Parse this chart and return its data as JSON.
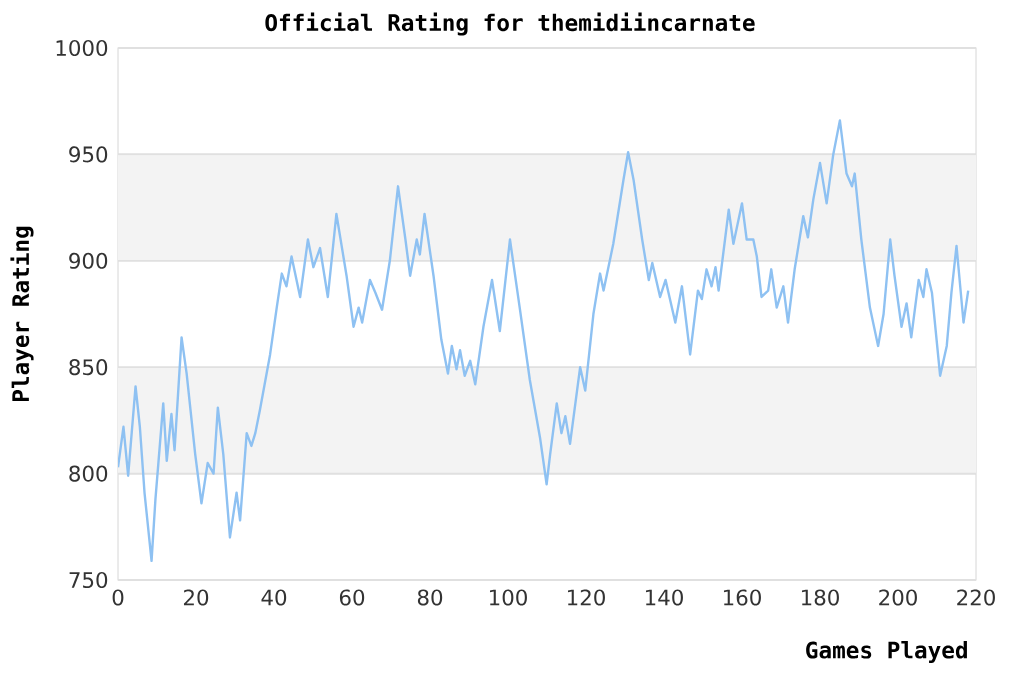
{
  "chart_data": {
    "type": "line",
    "title": "Official Rating for themidiincarnate",
    "xlabel": "Games Played",
    "ylabel": "Player Rating",
    "xlim": [
      0,
      220
    ],
    "xticks": [
      0,
      20,
      40,
      60,
      80,
      100,
      120,
      140,
      160,
      180,
      200,
      220
    ],
    "ylim": [
      750,
      1000
    ],
    "yticks": [
      750,
      800,
      850,
      900,
      950,
      1000
    ],
    "grid": "y",
    "bands": [
      {
        "axis": "y",
        "from": 800,
        "to": 850,
        "color": "#f3f3f3"
      },
      {
        "axis": "y",
        "from": 900,
        "to": 950,
        "color": "#f3f3f3"
      }
    ],
    "series": [
      {
        "color": "#8ec1f2",
        "x": [
          0,
          1.4,
          2.6,
          4.5,
          5.6,
          6.8,
          8.6,
          9.6,
          11.6,
          12.5,
          13.7,
          14.5,
          16.3,
          17.6,
          19.8,
          21.4,
          23,
          24.5,
          25.6,
          27,
          28.7,
          30.4,
          31.3,
          33,
          34.2,
          35.2,
          36.4,
          39,
          40.7,
          42,
          43.2,
          44.5,
          46.7,
          48.7,
          50.1,
          51.8,
          53.8,
          56,
          58.6,
          60.4,
          61.7,
          62.6,
          64.6,
          66,
          67.7,
          69.7,
          71.8,
          73.7,
          74.9,
          76.6,
          77.4,
          78.6,
          80.9,
          82.9,
          84.6,
          85.6,
          86.8,
          87.7,
          88.9,
          90.3,
          91.6,
          93.7,
          95.9,
          97.9,
          100.5,
          103,
          105.6,
          108.2,
          109.9,
          110.8,
          112.5,
          113.7,
          114.7,
          115.9,
          118.5,
          119.8,
          121.9,
          123.6,
          124.5,
          127,
          129.6,
          130.8,
          132.2,
          134.4,
          136.1,
          137,
          139,
          140.4,
          142.9,
          144.6,
          146.7,
          148.7,
          149.7,
          150.9,
          152.2,
          153.2,
          154,
          156.6,
          157.8,
          160,
          161.2,
          162.9,
          163.8,
          165,
          166.7,
          167.5,
          168.9,
          170.6,
          171.8,
          173.5,
          175.7,
          176.9,
          178.3,
          180,
          181.7,
          183.4,
          185.1,
          186.8,
          188.2,
          188.9,
          190.6,
          192.8,
          194.9,
          196.3,
          198,
          199.1,
          200.9,
          202.2,
          203.4,
          205.3,
          206.5,
          207.3,
          208.7,
          210.8,
          212.5,
          213.7,
          215,
          216.8,
          218
        ],
        "values": [
          803,
          822,
          799,
          841,
          822,
          791,
          759,
          788,
          833,
          806,
          828,
          811,
          864,
          847,
          809,
          786,
          805,
          800,
          831,
          809,
          770,
          791,
          778,
          819,
          813,
          819,
          830,
          856,
          878,
          894,
          888,
          902,
          883,
          910,
          897,
          906,
          883,
          922,
          893,
          869,
          878,
          871,
          891,
          885,
          877,
          900,
          935,
          910,
          893,
          910,
          903,
          922,
          893,
          863,
          847,
          860,
          849,
          858,
          846,
          853,
          842,
          869,
          891,
          867,
          910,
          878,
          844,
          817,
          795,
          809,
          833,
          819,
          827,
          814,
          850,
          839,
          875,
          894,
          886,
          908,
          938,
          951,
          938,
          910,
          891,
          899,
          883,
          891,
          871,
          888,
          856,
          886,
          882,
          896,
          888,
          897,
          886,
          924,
          908,
          927,
          910,
          910,
          902,
          883,
          886,
          896,
          878,
          888,
          871,
          896,
          921,
          911,
          929,
          946,
          927,
          950,
          966,
          941,
          935,
          941,
          910,
          878,
          860,
          875,
          910,
          893,
          869,
          880,
          864,
          891,
          883,
          896,
          885,
          846,
          860,
          885,
          907,
          871,
          886
        ]
      }
    ]
  }
}
